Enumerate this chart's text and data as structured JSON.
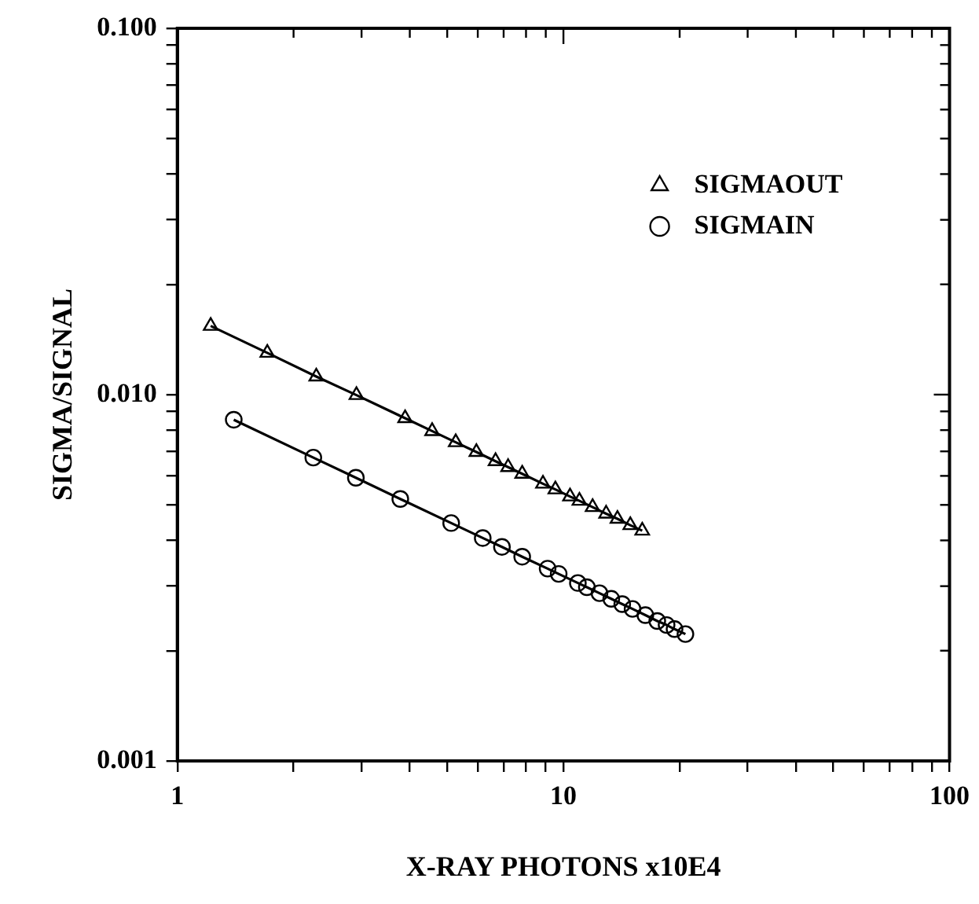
{
  "chart_data": {
    "type": "line",
    "xlabel": "X-RAY PHOTONS x10E4",
    "ylabel": "SIGMA/SIGNAL",
    "log": "xy",
    "grid": false,
    "legend": "top right",
    "line_style": "solid",
    "xlim": [
      1,
      100
    ],
    "ylim": [
      0.001,
      0.1
    ],
    "xticks": [
      1,
      {
        "value": 2,
        "label": null
      },
      {
        "value": 3,
        "label": null
      },
      {
        "value": 4,
        "label": null
      },
      {
        "value": 5,
        "label": null
      },
      {
        "value": 6,
        "label": null
      },
      {
        "value": 7,
        "label": null
      },
      {
        "value": 8,
        "label": null
      },
      {
        "value": 9,
        "label": null
      },
      10,
      {
        "value": 20,
        "label": null
      },
      {
        "value": 30,
        "label": null
      },
      {
        "value": 40,
        "label": null
      },
      {
        "value": 50,
        "label": null
      },
      {
        "value": 60,
        "label": null
      },
      {
        "value": 70,
        "label": null
      },
      {
        "value": 80,
        "label": null
      },
      {
        "value": 90,
        "label": null
      },
      100
    ],
    "yticks": [
      {
        "value": 0.001,
        "label": "0.001"
      },
      {
        "value": 0.002,
        "label": null
      },
      {
        "value": 0.003,
        "label": null
      },
      {
        "value": 0.004,
        "label": null
      },
      {
        "value": 0.005,
        "label": null
      },
      {
        "value": 0.006,
        "label": null
      },
      {
        "value": 0.007,
        "label": null
      },
      {
        "value": 0.008,
        "label": null
      },
      {
        "value": 0.009,
        "label": null
      },
      {
        "value": 0.01,
        "label": "0.010"
      },
      {
        "value": 0.02,
        "label": null
      },
      {
        "value": 0.03,
        "label": null
      },
      {
        "value": 0.04,
        "label": null
      },
      {
        "value": 0.05,
        "label": null
      },
      {
        "value": 0.06,
        "label": null
      },
      {
        "value": 0.07,
        "label": null
      },
      {
        "value": 0.08,
        "label": null
      },
      {
        "value": 0.09,
        "label": null
      },
      {
        "value": 0.1,
        "label": "0.100"
      }
    ],
    "series": [
      {
        "name": "SIGMAOUT",
        "color": "#000000",
        "marker": "triangle",
        "x": [
          1.22,
          1.71,
          2.29,
          2.91,
          3.89,
          4.57,
          5.26,
          5.95,
          6.67,
          7.19,
          7.82,
          8.85,
          9.53,
          10.4,
          11.0,
          11.9,
          12.9,
          13.8,
          14.9,
          16.0
        ],
        "values": [
          0.0154,
          0.013,
          0.0112,
          0.00997,
          0.00862,
          0.00795,
          0.00741,
          0.00697,
          0.00658,
          0.00634,
          0.00608,
          0.00571,
          0.00551,
          0.00527,
          0.00513,
          0.00493,
          0.00473,
          0.00458,
          0.0044,
          0.00425
        ]
      },
      {
        "name": "SIGMAIN",
        "color": "#000000",
        "marker": "circle",
        "x": [
          1.4,
          2.25,
          2.9,
          3.78,
          5.12,
          6.18,
          6.93,
          7.82,
          9.1,
          9.72,
          10.9,
          11.5,
          12.4,
          13.3,
          14.2,
          15.1,
          16.3,
          17.5,
          18.5,
          19.4,
          20.7
        ],
        "values": [
          0.00854,
          0.00673,
          0.00593,
          0.00519,
          0.00446,
          0.00406,
          0.00384,
          0.00361,
          0.00335,
          0.00324,
          0.00306,
          0.00298,
          0.00287,
          0.00277,
          0.00268,
          0.0026,
          0.0025,
          0.00241,
          0.00235,
          0.00229,
          0.00222
        ]
      }
    ]
  }
}
